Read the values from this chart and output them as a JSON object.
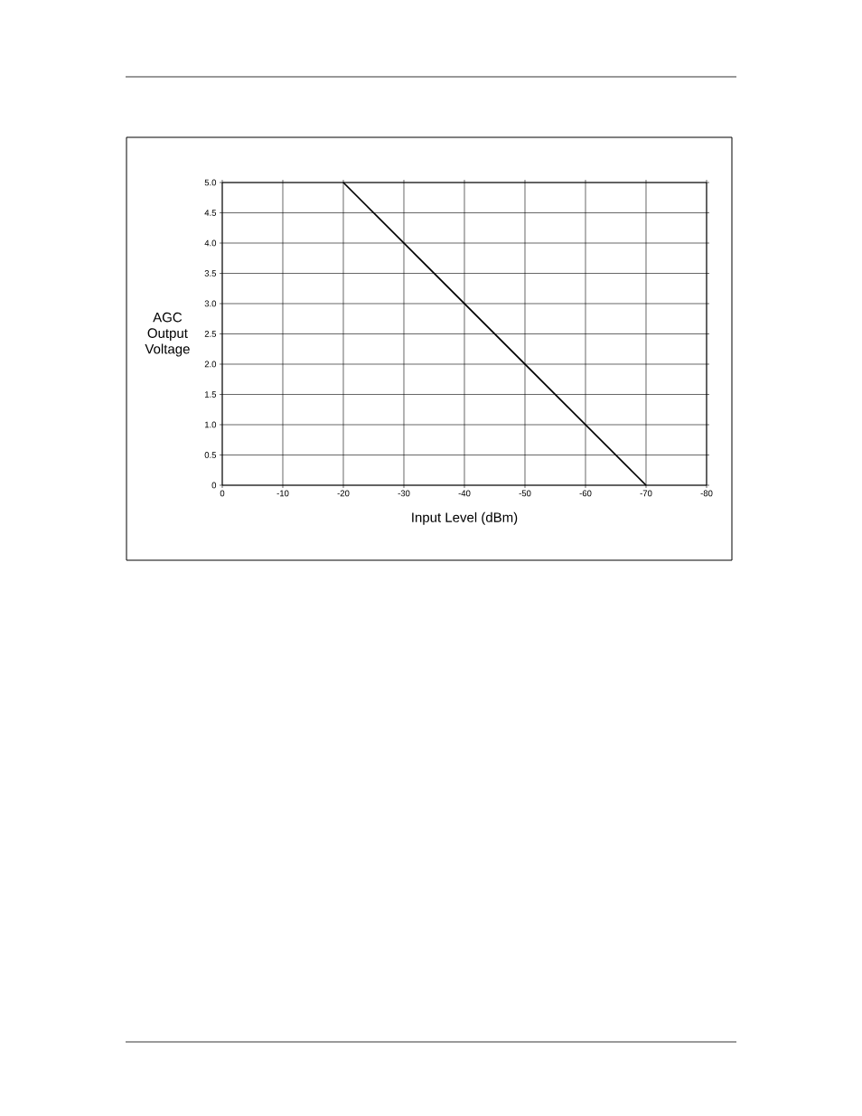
{
  "chart_data": {
    "type": "line",
    "xlabel": "Input Level (dBm)",
    "ylabel": "AGC Output Voltage",
    "x": [
      -20,
      -70
    ],
    "series": [
      {
        "color": "#000000",
        "values": [
          5,
          0
        ]
      }
    ],
    "xlim": [
      0,
      -80
    ],
    "ylim": [
      0,
      5
    ],
    "xticks": [
      0,
      -10,
      -20,
      -30,
      -40,
      -50,
      -60,
      -70,
      -80
    ],
    "yticks": [
      0,
      0.5,
      {
        "value": 1,
        "label": "1.0"
      },
      1.5,
      {
        "value": 2,
        "label": "2.0"
      },
      2.5,
      {
        "value": 3,
        "label": "3.0"
      },
      3.5,
      {
        "value": 4,
        "label": "4.0"
      },
      4.5,
      {
        "value": 5,
        "label": "5.0"
      }
    ],
    "grid": true,
    "marker": "none",
    "line_style": "solid"
  }
}
